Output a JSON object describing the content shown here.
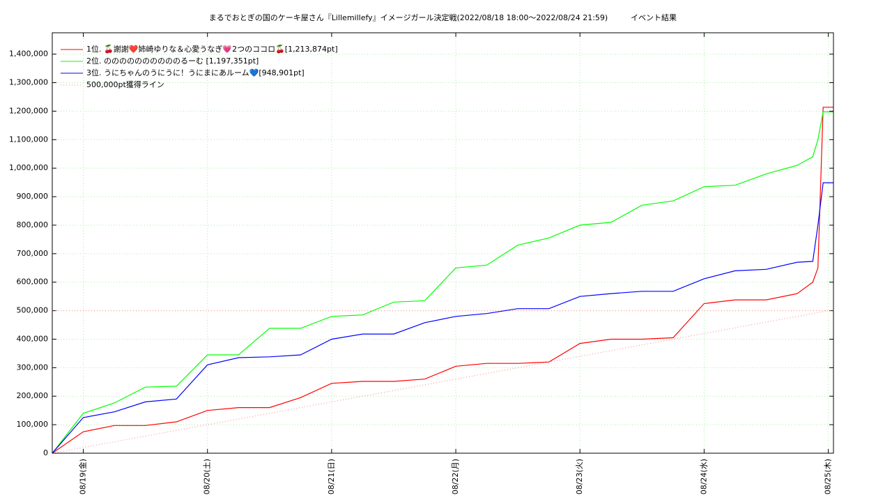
{
  "chart_data": {
    "type": "line",
    "title": "まるでおとぎの国のケーキ屋さん『Lillemillefy』イメージガール決定戦(2022/08/18 18:00～2022/08/24 21:59)",
    "subtitle": "イベント結果",
    "x": [
      -6,
      0,
      6,
      12,
      18,
      24,
      30,
      36,
      42,
      48,
      54,
      60,
      66,
      72,
      78,
      84,
      90,
      96,
      102,
      108,
      114,
      120,
      126,
      132,
      138,
      141,
      142,
      143,
      145
    ],
    "series": [
      {
        "name": "1位. 🍒謝謝❤️姉崎ゆりな＆心愛うなぎ💗2つのココロ🍒[1,213,874pt]",
        "color": "#ff0000",
        "values": [
          0,
          75000,
          97000,
          97000,
          110000,
          150000,
          160000,
          160000,
          195000,
          245000,
          252000,
          252000,
          260000,
          305000,
          315000,
          315000,
          320000,
          385000,
          400000,
          400000,
          405000,
          525000,
          538000,
          538000,
          560000,
          600000,
          650000,
          1213874,
          1213874
        ]
      },
      {
        "name": "2位. ののののののののののるーむ [1,197,351pt]",
        "color": "#00ff00",
        "values": [
          0,
          140000,
          176000,
          232000,
          235000,
          345000,
          345000,
          438000,
          438000,
          480000,
          485000,
          530000,
          535000,
          650000,
          660000,
          730000,
          755000,
          800000,
          810000,
          870000,
          885000,
          935000,
          940000,
          980000,
          1010000,
          1040000,
          1100000,
          1197351,
          1197351
        ]
      },
      {
        "name": "3位. うにちゃんのうにうに！うにまにあルーム💙[948,901pt]",
        "color": "#0000ff",
        "values": [
          0,
          125000,
          145000,
          180000,
          190000,
          310000,
          335000,
          338000,
          345000,
          400000,
          418000,
          418000,
          458000,
          480000,
          490000,
          507000,
          507000,
          550000,
          560000,
          568000,
          568000,
          612000,
          640000,
          645000,
          670000,
          673000,
          800000,
          948901,
          948901
        ]
      }
    ],
    "reference_line": {
      "name": "500,000pt獲得ライン",
      "color": "#ff8080",
      "x": [
        -6,
        144
      ],
      "values": [
        0,
        500000
      ]
    },
    "threshold": 500000,
    "xlim": [
      -6,
      145
    ],
    "xticks": [
      {
        "value": 0,
        "label": "08/19(金)"
      },
      {
        "value": 24,
        "label": "08/20(土)"
      },
      {
        "value": 48,
        "label": "08/21(日)"
      },
      {
        "value": 72,
        "label": "08/22(月)"
      },
      {
        "value": 96,
        "label": "08/23(火)"
      },
      {
        "value": 120,
        "label": "08/24(水)"
      },
      {
        "value": 144,
        "label": "08/25(木)"
      }
    ],
    "ylim": [
      0,
      1475000
    ],
    "yticks": [
      0,
      {
        "value": 100000,
        "label": "100,000"
      },
      {
        "value": 200000,
        "label": "200,000"
      },
      {
        "value": 300000,
        "label": "300,000"
      },
      {
        "value": 400000,
        "label": "400,000"
      },
      {
        "value": 500000,
        "label": "500,000"
      },
      {
        "value": 600000,
        "label": "600,000"
      },
      {
        "value": 700000,
        "label": "700,000"
      },
      {
        "value": 800000,
        "label": "800,000"
      },
      {
        "value": 900000,
        "label": "900,000"
      },
      {
        "value": 1000000,
        "label": "1,000,000"
      },
      {
        "value": 1100000,
        "label": "1,100,000"
      },
      {
        "value": 1200000,
        "label": "1,200,000"
      },
      {
        "value": 1300000,
        "label": "1,300,000"
      },
      {
        "value": 1400000,
        "label": "1,400,000"
      }
    ],
    "grid": true,
    "legend": "upper left"
  }
}
